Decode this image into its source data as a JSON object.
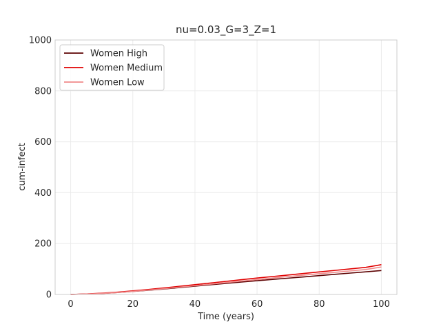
{
  "chart_data": {
    "type": "line",
    "title": "nu=0.03_G=3_Z=1",
    "xlabel": "Time (years)",
    "ylabel": "cum-infect",
    "xlim": [
      -5,
      105
    ],
    "ylim": [
      0,
      1000
    ],
    "xticks": [
      0,
      20,
      40,
      60,
      80,
      100
    ],
    "yticks": [
      0,
      200,
      400,
      600,
      800,
      1000
    ],
    "grid": true,
    "legend_position": "upper-left",
    "x": [
      0,
      5,
      10,
      15,
      20,
      25,
      30,
      35,
      40,
      45,
      50,
      55,
      60,
      65,
      70,
      75,
      80,
      85,
      90,
      95,
      100
    ],
    "series": [
      {
        "name": "Women High",
        "color": "#5c0000",
        "values": [
          0,
          1.5,
          4,
          7.5,
          12,
          16.5,
          21.5,
          27,
          32.5,
          38,
          43.5,
          49,
          54,
          59,
          64,
          69,
          74,
          79,
          84,
          89,
          94
        ]
      },
      {
        "name": "Women Medium",
        "color": "#e00000",
        "values": [
          0,
          2,
          5,
          9,
          14,
          19.5,
          25.5,
          32,
          38.5,
          45,
          51.5,
          58,
          64.5,
          70.5,
          76.5,
          82.5,
          88.5,
          94.5,
          100.5,
          106.5,
          117
        ]
      },
      {
        "name": "Women Low",
        "color": "#f08a8a",
        "values": [
          0,
          1.5,
          4,
          7.5,
          12,
          17,
          22.5,
          28.5,
          34.5,
          40.5,
          46.5,
          52.5,
          58.5,
          64.5,
          70.5,
          76,
          81.5,
          87,
          92.5,
          98,
          108
        ]
      }
    ]
  }
}
